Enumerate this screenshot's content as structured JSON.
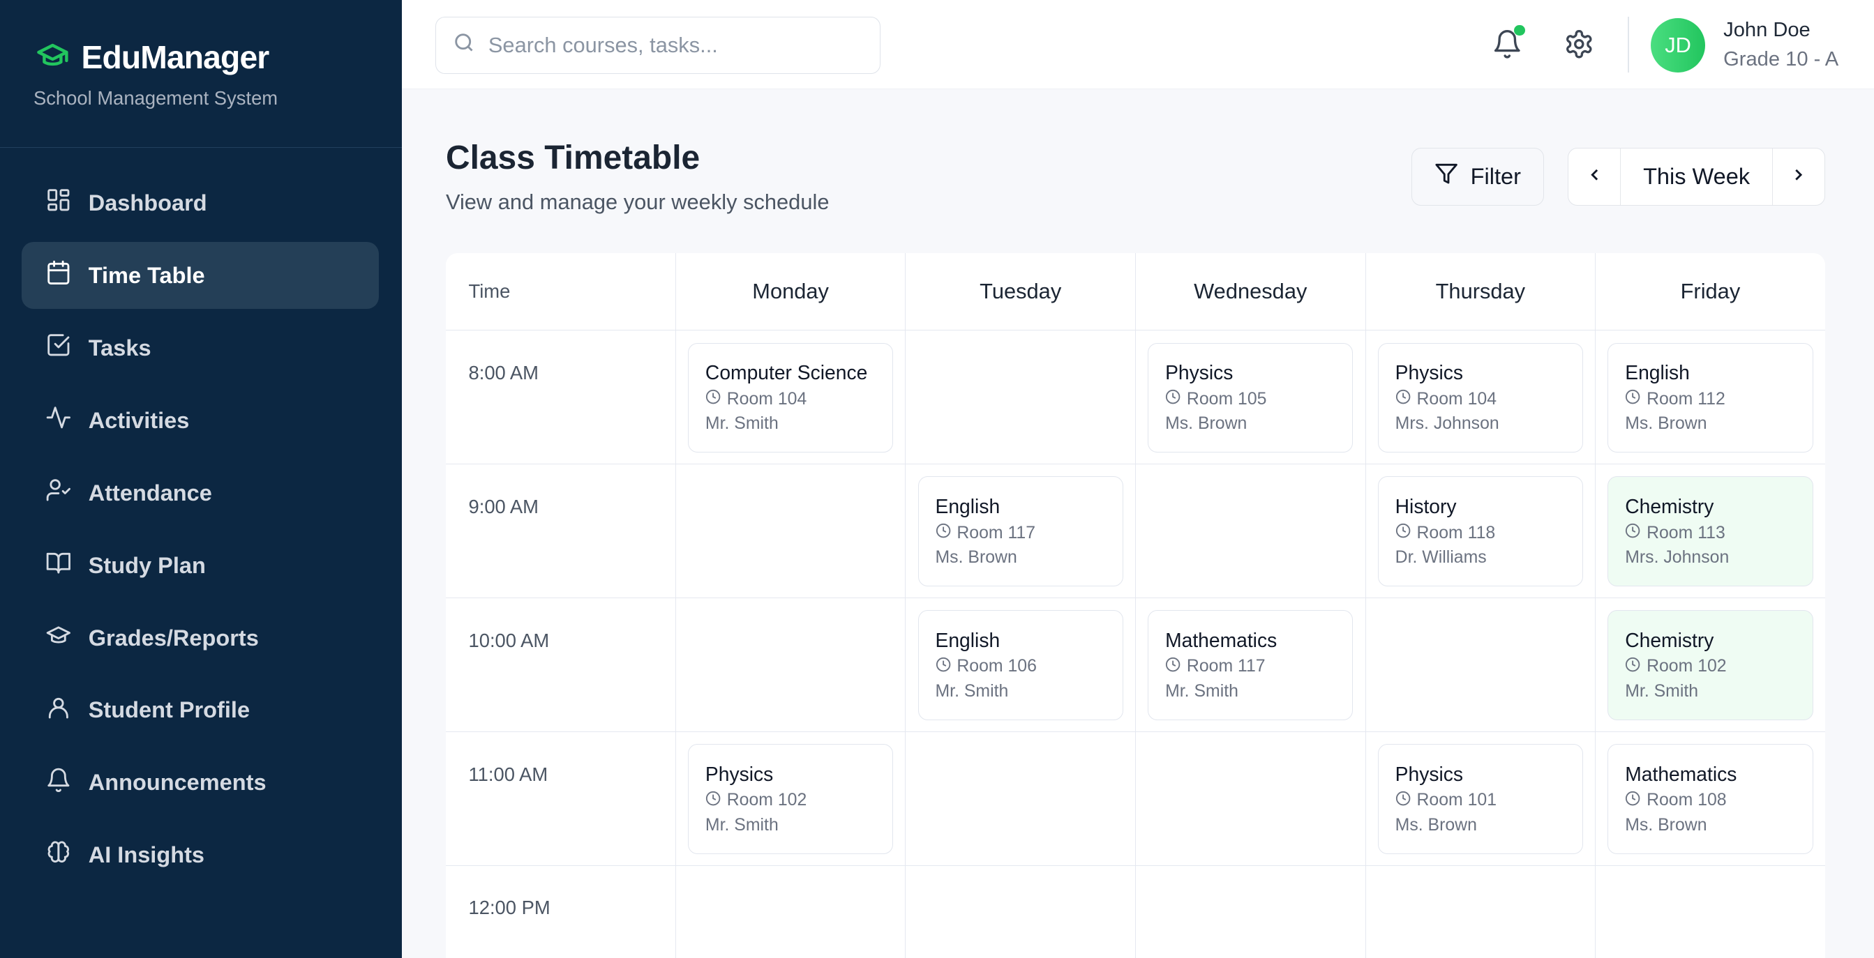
{
  "brand": {
    "name": "EduManager",
    "subtitle": "School Management System",
    "accent": "#22c55e"
  },
  "sidebar": {
    "items": [
      {
        "label": "Dashboard",
        "icon": "dashboard-icon"
      },
      {
        "label": "Time Table",
        "icon": "calendar-icon",
        "active": true
      },
      {
        "label": "Tasks",
        "icon": "checkbox-icon"
      },
      {
        "label": "Activities",
        "icon": "activity-icon"
      },
      {
        "label": "Attendance",
        "icon": "user-check-icon"
      },
      {
        "label": "Study Plan",
        "icon": "book-icon"
      },
      {
        "label": "Grades/Reports",
        "icon": "graduation-cap-icon"
      },
      {
        "label": "Student Profile",
        "icon": "user-icon"
      },
      {
        "label": "Announcements",
        "icon": "bell-icon"
      },
      {
        "label": "AI Insights",
        "icon": "brain-icon"
      }
    ]
  },
  "topbar": {
    "search_placeholder": "Search courses, tasks...",
    "user": {
      "initials": "JD",
      "name": "John Doe",
      "grade": "Grade 10 - A"
    }
  },
  "page": {
    "title": "Class Timetable",
    "subtitle": "View and manage your weekly schedule",
    "filter_label": "Filter",
    "week_label": "This Week"
  },
  "timetable": {
    "time_header": "Time",
    "days": [
      "Monday",
      "Tuesday",
      "Wednesday",
      "Thursday",
      "Friday"
    ],
    "rows": [
      {
        "time": "8:00 AM",
        "slots": [
          {
            "subject": "Computer Science",
            "room": "Room 104",
            "teacher": "Mr. Smith"
          },
          null,
          {
            "subject": "Physics",
            "room": "Room 105",
            "teacher": "Ms. Brown"
          },
          {
            "subject": "Physics",
            "room": "Room 104",
            "teacher": "Mrs. Johnson"
          },
          {
            "subject": "English",
            "room": "Room 112",
            "teacher": "Ms. Brown"
          }
        ]
      },
      {
        "time": "9:00 AM",
        "slots": [
          null,
          {
            "subject": "English",
            "room": "Room 117",
            "teacher": "Ms. Brown"
          },
          null,
          {
            "subject": "History",
            "room": "Room 118",
            "teacher": "Dr. Williams"
          },
          {
            "subject": "Chemistry",
            "room": "Room 113",
            "teacher": "Mrs. Johnson",
            "highlight": true
          }
        ]
      },
      {
        "time": "10:00 AM",
        "slots": [
          null,
          {
            "subject": "English",
            "room": "Room 106",
            "teacher": "Mr. Smith"
          },
          {
            "subject": "Mathematics",
            "room": "Room 117",
            "teacher": "Mr. Smith"
          },
          null,
          {
            "subject": "Chemistry",
            "room": "Room 102",
            "teacher": "Mr. Smith",
            "highlight": true
          }
        ]
      },
      {
        "time": "11:00 AM",
        "slots": [
          {
            "subject": "Physics",
            "room": "Room 102",
            "teacher": "Mr. Smith"
          },
          null,
          null,
          {
            "subject": "Physics",
            "room": "Room 101",
            "teacher": "Ms. Brown"
          },
          {
            "subject": "Mathematics",
            "room": "Room 108",
            "teacher": "Ms. Brown"
          }
        ]
      },
      {
        "time": "12:00 PM",
        "slots": [
          null,
          null,
          null,
          null,
          null
        ]
      }
    ]
  }
}
